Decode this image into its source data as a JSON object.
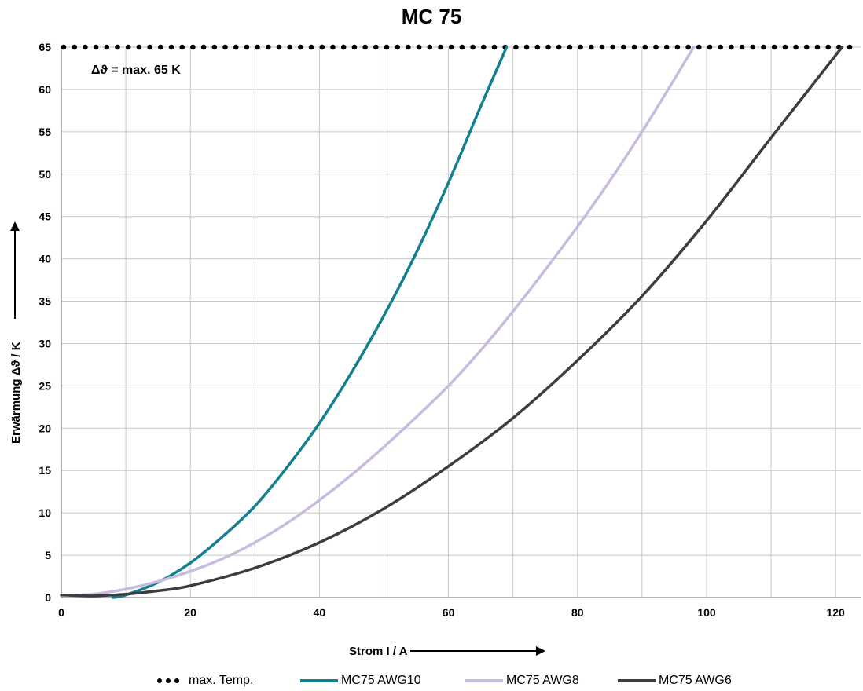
{
  "chart_data": {
    "type": "line",
    "title": "MC 75",
    "xlabel": "Strom I / A",
    "ylabel": "Erwärmung Δϑ / K",
    "xlim": [
      0,
      124
    ],
    "ylim": [
      0,
      65
    ],
    "xticks": [
      0,
      20,
      40,
      60,
      80,
      100,
      120
    ],
    "yticks": [
      0,
      5,
      10,
      15,
      20,
      25,
      30,
      35,
      40,
      45,
      50,
      55,
      60,
      65
    ],
    "grid": true,
    "legend_position": "bottom",
    "annotation": "Δϑ = max. 65 K",
    "series": [
      {
        "name": "max. Temp.",
        "style": "dotted",
        "color": "#000000",
        "x": [
          0,
          124
        ],
        "y": [
          65,
          65
        ]
      },
      {
        "name": "MC75 AWG10",
        "style": "solid",
        "color": "#12808F",
        "x": [
          8,
          10,
          15,
          20,
          25,
          30,
          35,
          40,
          45,
          50,
          55,
          60,
          65,
          69
        ],
        "y": [
          0,
          0.3,
          1.8,
          4.1,
          7.2,
          10.8,
          15.4,
          20.6,
          26.6,
          33.3,
          40.7,
          49,
          58,
          65
        ]
      },
      {
        "name": "MC75 AWG8",
        "style": "solid",
        "color": "#C9BBDD",
        "x": [
          0,
          5,
          10,
          15,
          20,
          25,
          30,
          35,
          40,
          45,
          50,
          55,
          60,
          65,
          70,
          75,
          80,
          85,
          90,
          95,
          98
        ],
        "y": [
          0.3,
          0.4,
          1,
          1.9,
          3.1,
          4.6,
          6.5,
          8.8,
          11.5,
          14.5,
          17.8,
          21.3,
          25,
          29.2,
          33.8,
          38.7,
          43.8,
          49.2,
          55,
          61.2,
          65
        ]
      },
      {
        "name": "MC75 AWG6",
        "style": "solid",
        "color": "#3D3D3D",
        "x": [
          0,
          5,
          10,
          15,
          20,
          30,
          40,
          50,
          60,
          70,
          80,
          90,
          100,
          110,
          121
        ],
        "y": [
          0.3,
          0.2,
          0.4,
          0.8,
          1.4,
          3.5,
          6.5,
          10.5,
          15.5,
          21.2,
          28,
          35.6,
          44.5,
          54.3,
          65
        ]
      }
    ]
  }
}
